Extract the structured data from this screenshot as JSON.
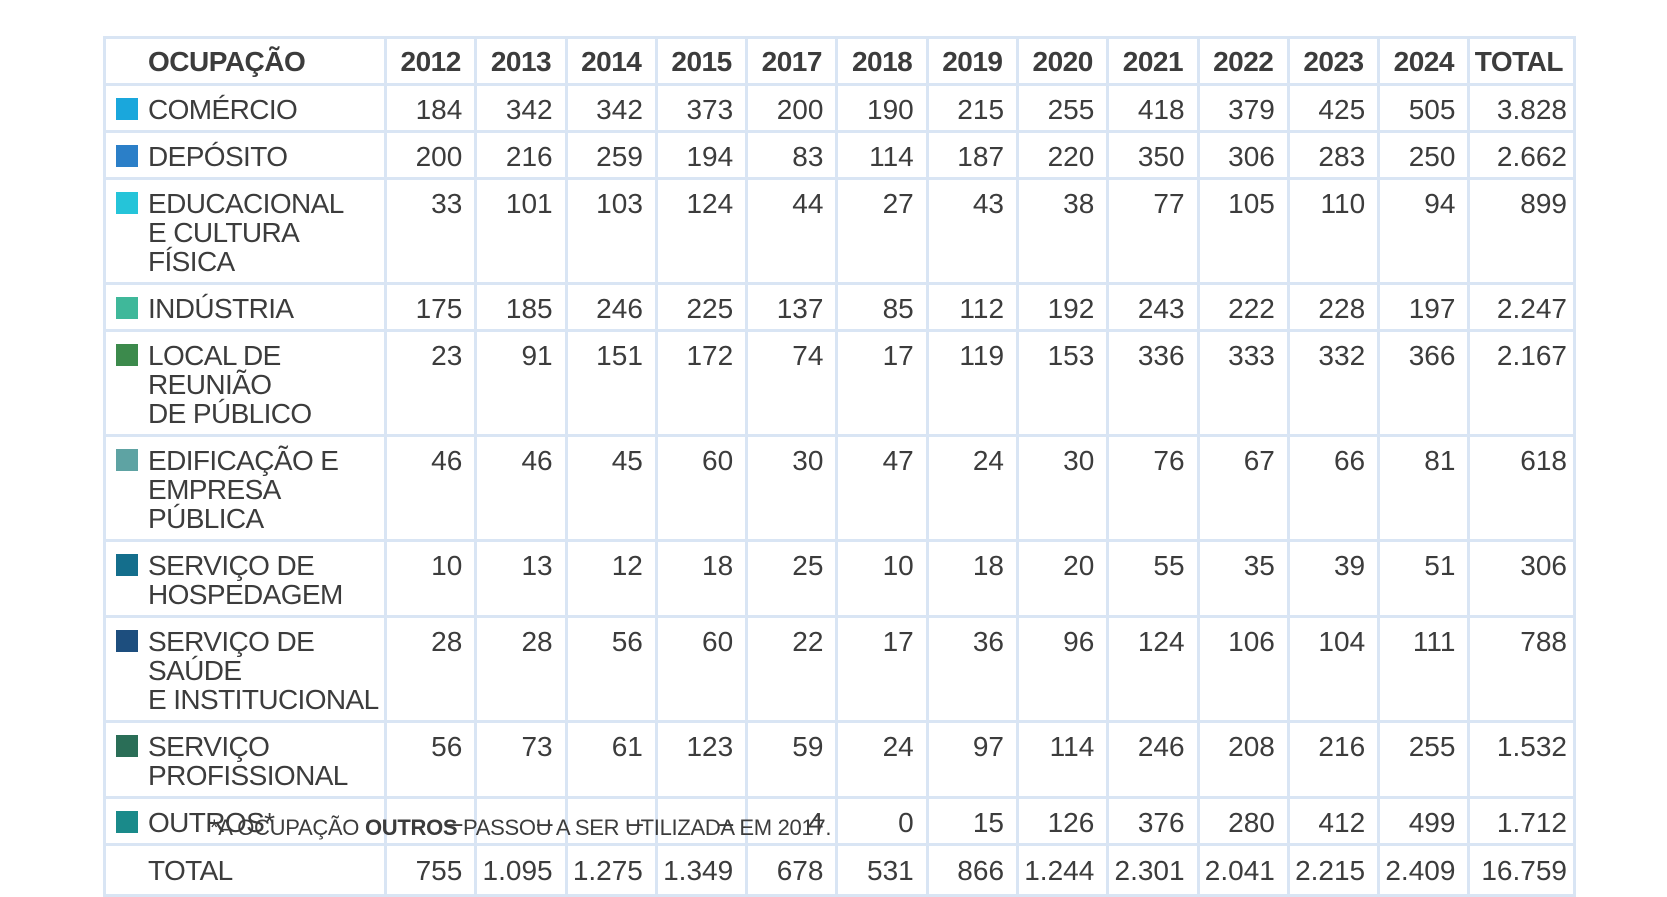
{
  "chart_data": {
    "type": "table",
    "columns": [
      "OCUPAÇÃO",
      "2012",
      "2013",
      "2014",
      "2015",
      "2017",
      "2018",
      "2019",
      "2020",
      "2021",
      "2022",
      "2023",
      "2024",
      "TOTAL"
    ],
    "rows": [
      {
        "label": "COMÉRCIO",
        "color": "#1aa7dc",
        "values": [
          "184",
          "342",
          "342",
          "373",
          "200",
          "190",
          "215",
          "255",
          "418",
          "379",
          "425",
          "505"
        ],
        "total": "3.828"
      },
      {
        "label": "DEPÓSITO",
        "color": "#2b7fc8",
        "values": [
          "200",
          "216",
          "259",
          "194",
          "83",
          "114",
          "187",
          "220",
          "350",
          "306",
          "283",
          "250"
        ],
        "total": "2.662"
      },
      {
        "label": "EDUCACIONAL\nE CULTURA FÍSICA",
        "color": "#25c4d9",
        "values": [
          "33",
          "101",
          "103",
          "124",
          "44",
          "27",
          "43",
          "38",
          "77",
          "105",
          "110",
          "94"
        ],
        "total": "899"
      },
      {
        "label": "INDÚSTRIA",
        "color": "#3fb89a",
        "values": [
          "175",
          "185",
          "246",
          "225",
          "137",
          "85",
          "112",
          "192",
          "243",
          "222",
          "228",
          "197"
        ],
        "total": "2.247"
      },
      {
        "label": "LOCAL DE REUNIÃO\nDE PÚBLICO",
        "color": "#3c8a4c",
        "values": [
          "23",
          "91",
          "151",
          "172",
          "74",
          "17",
          "119",
          "153",
          "336",
          "333",
          "332",
          "366"
        ],
        "total": "2.167"
      },
      {
        "label": "EDIFICAÇÃO E\nEMPRESA PÚBLICA",
        "color": "#5ea3a3",
        "values": [
          "46",
          "46",
          "45",
          "60",
          "30",
          "47",
          "24",
          "30",
          "76",
          "67",
          "66",
          "81"
        ],
        "total": "618"
      },
      {
        "label": "SERVIÇO DE\nHOSPEDAGEM",
        "color": "#146e8c",
        "values": [
          "10",
          "13",
          "12",
          "18",
          "25",
          "10",
          "18",
          "20",
          "55",
          "35",
          "39",
          "51"
        ],
        "total": "306"
      },
      {
        "label": "SERVIÇO DE SAÚDE\nE INSTITUCIONAL",
        "color": "#1d4e7e",
        "values": [
          "28",
          "28",
          "56",
          "60",
          "22",
          "17",
          "36",
          "96",
          "124",
          "106",
          "104",
          "111"
        ],
        "total": "788"
      },
      {
        "label": "SERVIÇO\nPROFISSIONAL",
        "color": "#2a6e57",
        "values": [
          "56",
          "73",
          "61",
          "123",
          "59",
          "24",
          "97",
          "114",
          "246",
          "208",
          "216",
          "255"
        ],
        "total": "1.532"
      },
      {
        "label": "OUTROS*",
        "color": "#1a8a8a",
        "values": [
          "–",
          "–",
          "–",
          "–",
          "4",
          "0",
          "15",
          "126",
          "376",
          "280",
          "412",
          "499"
        ],
        "total": "1.712"
      }
    ],
    "total_row": {
      "label": "TOTAL",
      "values": [
        "755",
        "1.095",
        "1.275",
        "1.349",
        "678",
        "531",
        "866",
        "1.244",
        "2.301",
        "2.041",
        "2.215",
        "2.409"
      ],
      "total": "16.759"
    }
  },
  "footnote": {
    "prefix": "*A OCUPAÇÃO ",
    "bold": "OUTROS",
    "suffix": " PASSOU A SER UTILIZADA EM 2017."
  }
}
